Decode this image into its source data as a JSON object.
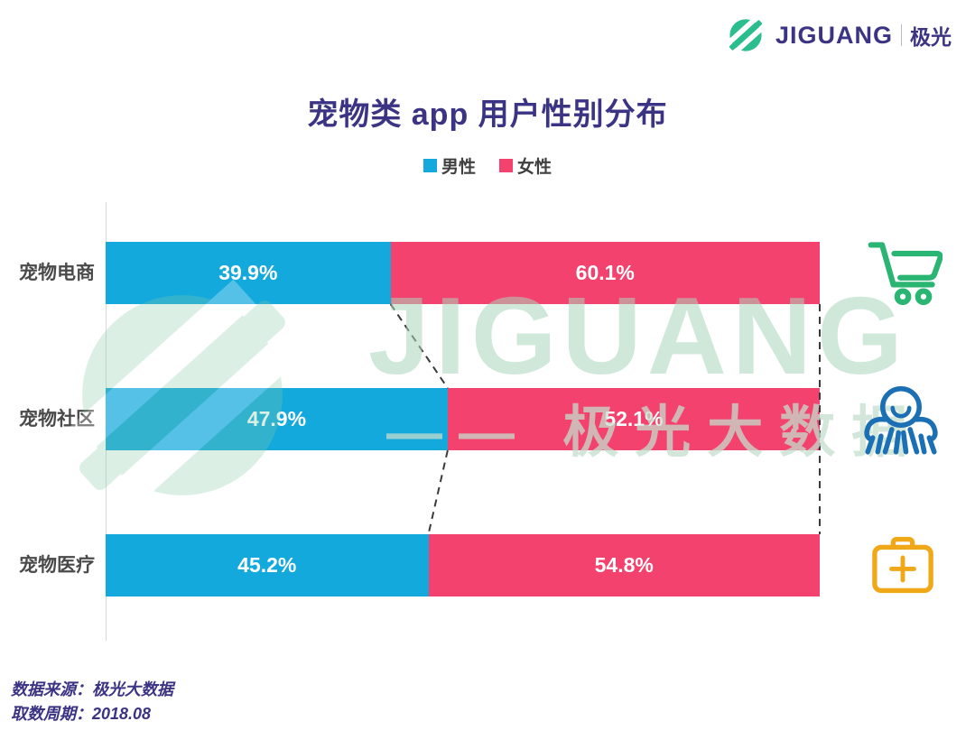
{
  "brand": {
    "name": "JIGUANG",
    "name_cn": "极光",
    "logo_color": "#2BBE8C",
    "text_color": "#3B3383"
  },
  "title": "宠物类 app 用户性别分布",
  "legend": [
    {
      "label": "男性",
      "color": "#14A9DD"
    },
    {
      "label": "女性",
      "color": "#F4426E"
    }
  ],
  "chart_data": {
    "type": "bar",
    "orientation": "horizontal",
    "stacked": true,
    "title": "宠物类 app 用户性别分布",
    "categories": [
      "宠物电商",
      "宠物社区",
      "宠物医疗"
    ],
    "series": [
      {
        "name": "男性",
        "color": "#14A9DD",
        "values": [
          39.9,
          47.9,
          45.2
        ]
      },
      {
        "name": "女性",
        "color": "#F4426E",
        "values": [
          60.1,
          52.1,
          54.8
        ]
      }
    ],
    "value_labels": [
      [
        "39.9%",
        "60.1%"
      ],
      [
        "47.9%",
        "52.1%"
      ],
      [
        "45.2%",
        "54.8%"
      ]
    ],
    "xlim": [
      0,
      100
    ],
    "legend_position": "top",
    "grid": false,
    "annotations": "dashed lines connect segment boundaries and bar ends between rows"
  },
  "row_icons": [
    {
      "category": "宠物电商",
      "icon": "shopping-cart",
      "color": "#2BB573"
    },
    {
      "category": "宠物社区",
      "icon": "people-group",
      "color": "#1A6FB5"
    },
    {
      "category": "宠物医疗",
      "icon": "medical-kit",
      "color": "#F0A818"
    }
  ],
  "watermark": {
    "line1": "JIGUANG",
    "line2": "—— 极光大数据"
  },
  "footer": {
    "line1": "数据来源：极光大数据",
    "line2": "取数周期：2018.08"
  },
  "colors": {
    "male_bar": "#14A9DD",
    "female_bar": "#F4426E",
    "title_text": "#3B3383",
    "axis_line": "#d9d9d9",
    "dashed_line": "#3a3a3a",
    "watermark_green": "#BCDECB"
  }
}
